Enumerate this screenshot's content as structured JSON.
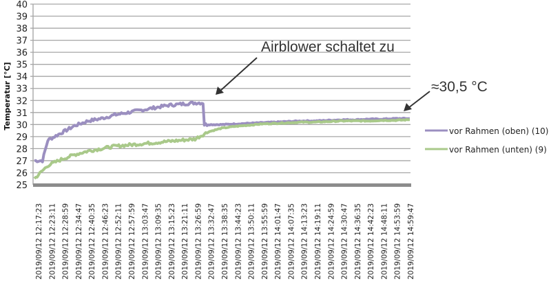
{
  "chart_data": {
    "type": "line",
    "title": "",
    "xlabel": "",
    "ylabel": "Temperatur [°C]",
    "ylim": [
      25,
      40
    ],
    "yticks": [
      25,
      26,
      27,
      28,
      29,
      30,
      31,
      32,
      33,
      34,
      35,
      36,
      37,
      38,
      39,
      40
    ],
    "grid": true,
    "legend_position": "right",
    "categories": [
      "2019/09/12 12:17:23",
      "2019/09/12 12:23:11",
      "2019/09/12 12:28:59",
      "2019/09/12 12:34:47",
      "2019/09/12 12:40:35",
      "2019/09/12 12:46:23",
      "2019/09/12 12:52:11",
      "2019/09/12 12:57:59",
      "2019/09/12 13:03:47",
      "2019/09/12 13:09:35",
      "2019/09/12 13:15:23",
      "2019/09/12 13:21:11",
      "2019/09/12 13:26:59",
      "2019/09/12 13:32:47",
      "2019/09/12 13:38:35",
      "2019/09/12 13:44:23",
      "2019/09/12 13:50:11",
      "2019/09/12 13:55:59",
      "2019/09/12 14:01:47",
      "2019/09/12 14:07:35",
      "2019/09/12 14:13:23",
      "2019/09/12 14:19:11",
      "2019/09/12 14:24:59",
      "2019/09/12 14:30:47",
      "2019/09/12 14:36:35",
      "2019/09/12 14:42:23",
      "2019/09/12 14:48:11",
      "2019/09/12 14:53:59",
      "2019/09/12 14:59:47"
    ],
    "series": [
      {
        "name": "vor Rahmen (oben) (10)",
        "color": "#9b8fc0",
        "values": [
          27.0,
          28.7,
          29.3,
          29.9,
          30.3,
          30.5,
          30.8,
          31.0,
          31.2,
          31.4,
          31.6,
          31.7,
          31.8,
          30.0,
          30.0,
          30.05,
          30.1,
          30.15,
          30.2,
          30.25,
          30.3,
          30.3,
          30.35,
          30.4,
          30.4,
          30.45,
          30.45,
          30.5,
          30.5
        ]
      },
      {
        "name": "vor Rahmen (unten) (9)",
        "color": "#a9c98a",
        "values": [
          25.5,
          26.6,
          27.1,
          27.5,
          27.8,
          28.0,
          28.2,
          28.3,
          28.4,
          28.5,
          28.6,
          28.7,
          28.8,
          29.4,
          29.7,
          29.85,
          29.95,
          30.05,
          30.1,
          30.15,
          30.2,
          30.2,
          30.25,
          30.3,
          30.3,
          30.3,
          30.35,
          30.35,
          30.4
        ]
      }
    ],
    "annotations": [
      {
        "text": "Airblower  schaltet zu",
        "points_to": "2019/09/12 13:32:47",
        "value": 31.8
      },
      {
        "text": "≈30,5 °C",
        "points_to": "2019/09/12 14:59:47",
        "value": 30.5
      }
    ]
  },
  "axis": {
    "ylabel": "Temperatur [°C]",
    "yticks": [
      "40",
      "39",
      "38",
      "37",
      "36",
      "35",
      "34",
      "33",
      "32",
      "31",
      "30",
      "29",
      "28",
      "27",
      "26",
      "25"
    ]
  },
  "annotations": {
    "airblower": "Airblower  schaltet zu",
    "final_temp": "≈30,5 °C"
  },
  "legend": {
    "items": [
      {
        "label": "vor Rahmen (oben) (10)",
        "color": "#9b8fc0"
      },
      {
        "label": "vor Rahmen (unten) (9)",
        "color": "#a9c98a"
      }
    ]
  }
}
